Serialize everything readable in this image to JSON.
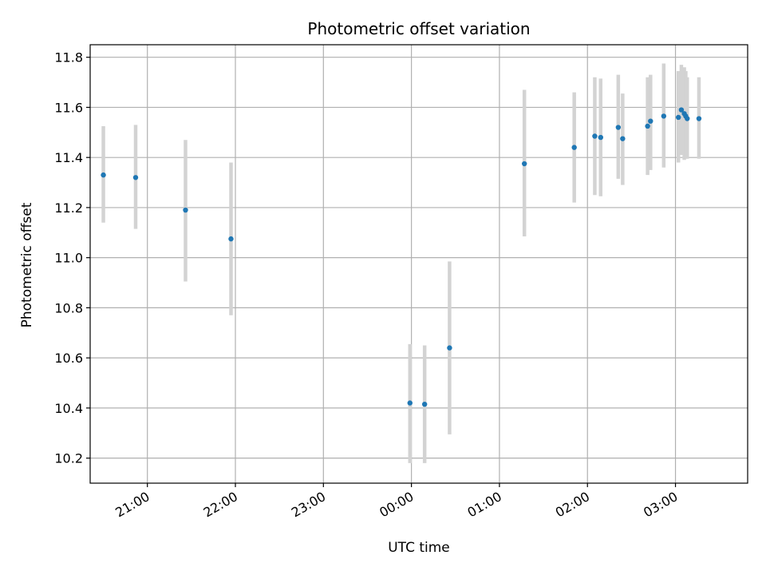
{
  "chart_data": {
    "type": "scatter",
    "title": "Photometric offset variation",
    "xlabel": "UTC time",
    "ylabel": "Photometric offset",
    "grid": true,
    "x_ticks": [
      "21:00",
      "22:00",
      "23:00",
      "00:00",
      "01:00",
      "02:00",
      "03:00"
    ],
    "y_ticks": [
      "10.2",
      "10.4",
      "10.6",
      "10.8",
      "11.0",
      "11.2",
      "11.4",
      "11.6",
      "11.8"
    ],
    "ylim": [
      10.1,
      11.85
    ],
    "xlim_hours": [
      20.35,
      27.82
    ],
    "colors": {
      "point": "#1f77b4",
      "errorbar": "#d3d3d3",
      "grid": "#b0b0b0"
    },
    "points": [
      {
        "t": "20:30",
        "y": 11.33,
        "err_low": 11.14,
        "err_high": 11.525
      },
      {
        "t": "20:52",
        "y": 11.32,
        "err_low": 11.115,
        "err_high": 11.53
      },
      {
        "t": "21:26",
        "y": 11.19,
        "err_low": 10.905,
        "err_high": 11.47
      },
      {
        "t": "21:57",
        "y": 11.075,
        "err_low": 10.77,
        "err_high": 11.38
      },
      {
        "t": "23:59",
        "y": 10.42,
        "err_low": 10.18,
        "err_high": 10.655
      },
      {
        "t": "00:09",
        "y": 10.415,
        "err_low": 10.18,
        "err_high": 10.65
      },
      {
        "t": "00:26",
        "y": 10.64,
        "err_low": 10.295,
        "err_high": 10.985
      },
      {
        "t": "01:17",
        "y": 11.375,
        "err_low": 11.085,
        "err_high": 11.67
      },
      {
        "t": "01:51",
        "y": 11.44,
        "err_low": 11.22,
        "err_high": 11.66
      },
      {
        "t": "02:05",
        "y": 11.485,
        "err_low": 11.25,
        "err_high": 11.72
      },
      {
        "t": "02:09",
        "y": 11.48,
        "err_low": 11.245,
        "err_high": 11.715
      },
      {
        "t": "02:21",
        "y": 11.52,
        "err_low": 11.315,
        "err_high": 11.73
      },
      {
        "t": "02:24",
        "y": 11.475,
        "err_low": 11.29,
        "err_high": 11.655
      },
      {
        "t": "02:41",
        "y": 11.525,
        "err_low": 11.33,
        "err_high": 11.72
      },
      {
        "t": "02:43",
        "y": 11.545,
        "err_low": 11.35,
        "err_high": 11.73
      },
      {
        "t": "02:52",
        "y": 11.565,
        "err_low": 11.36,
        "err_high": 11.775
      },
      {
        "t": "03:02",
        "y": 11.56,
        "err_low": 11.38,
        "err_high": 11.745
      },
      {
        "t": "03:04",
        "y": 11.59,
        "err_low": 11.41,
        "err_high": 11.77
      },
      {
        "t": "03:06",
        "y": 11.575,
        "err_low": 11.39,
        "err_high": 11.76
      },
      {
        "t": "03:07",
        "y": 11.565,
        "err_low": 11.395,
        "err_high": 11.745
      },
      {
        "t": "03:08",
        "y": 11.555,
        "err_low": 11.395,
        "err_high": 11.72
      },
      {
        "t": "03:16",
        "y": 11.555,
        "err_low": 11.395,
        "err_high": 11.72
      }
    ]
  }
}
